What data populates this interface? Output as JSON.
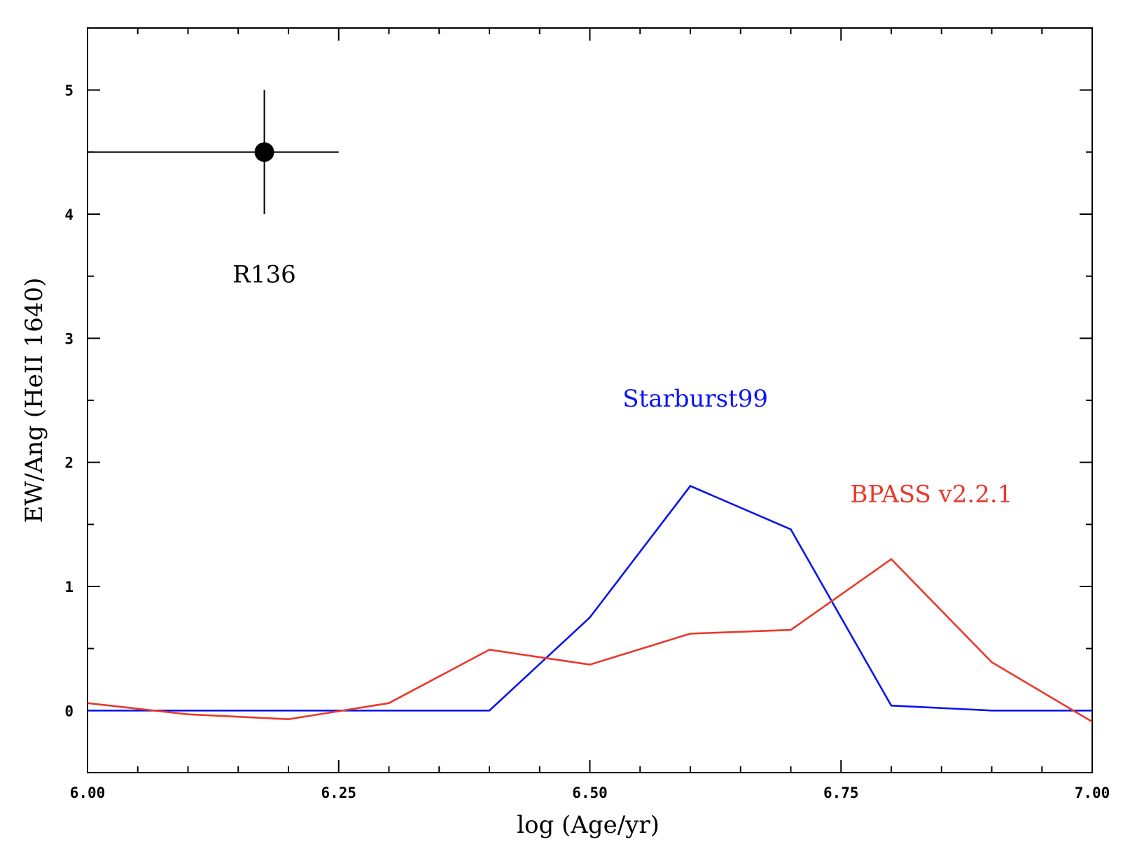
{
  "chart_data": {
    "type": "line",
    "title": "",
    "xlabel": "log (Age/yr)",
    "ylabel": "EW/Ang (HeII 1640)",
    "xlim": [
      6.0,
      7.0
    ],
    "ylim": [
      -0.5,
      5.5
    ],
    "x_ticks": [
      6.0,
      6.25,
      6.5,
      6.75,
      7.0
    ],
    "x_tick_labels": [
      "6.00",
      "6.25",
      "6.50",
      "6.75",
      "7.00"
    ],
    "x_minor_step": 0.05,
    "y_ticks": [
      0,
      1,
      2,
      3,
      4,
      5
    ],
    "y_tick_labels": [
      "0",
      "1",
      "2",
      "3",
      "4",
      "5"
    ],
    "y_minor_step": 0.5,
    "series": [
      {
        "name": "Starburst99",
        "color": "#0a14f0",
        "x": [
          6.0,
          6.1,
          6.2,
          6.3,
          6.4,
          6.5,
          6.6,
          6.7,
          6.8,
          6.9,
          7.0
        ],
        "values": [
          0.0,
          0.0,
          0.0,
          0.0,
          0.0,
          0.75,
          1.81,
          1.46,
          0.04,
          0.0,
          0.0
        ]
      },
      {
        "name": "BPASS v2.2.1",
        "color": "#e8392c",
        "x": [
          6.0,
          6.1,
          6.2,
          6.3,
          6.4,
          6.5,
          6.6,
          6.7,
          6.8,
          6.9,
          7.0
        ],
        "values": [
          0.06,
          -0.03,
          -0.07,
          0.06,
          0.49,
          0.37,
          0.62,
          0.65,
          1.22,
          0.39,
          -0.09
        ]
      }
    ],
    "points": [
      {
        "name": "R136",
        "x": 6.176,
        "y": 4.5,
        "xerr": [
          0.176,
          0.074
        ],
        "yerr": [
          0.5,
          0.5
        ],
        "color": "#000000"
      }
    ],
    "annotations": [
      {
        "text": "R136",
        "x": 6.176,
        "y": 3.45,
        "color": "#000000"
      },
      {
        "text": "Starburst99",
        "x": 6.605,
        "y": 2.45,
        "color": "#0a14f0"
      },
      {
        "text": "BPASS v2.2.1",
        "x": 6.84,
        "y": 1.68,
        "color": "#e8392c"
      }
    ]
  }
}
